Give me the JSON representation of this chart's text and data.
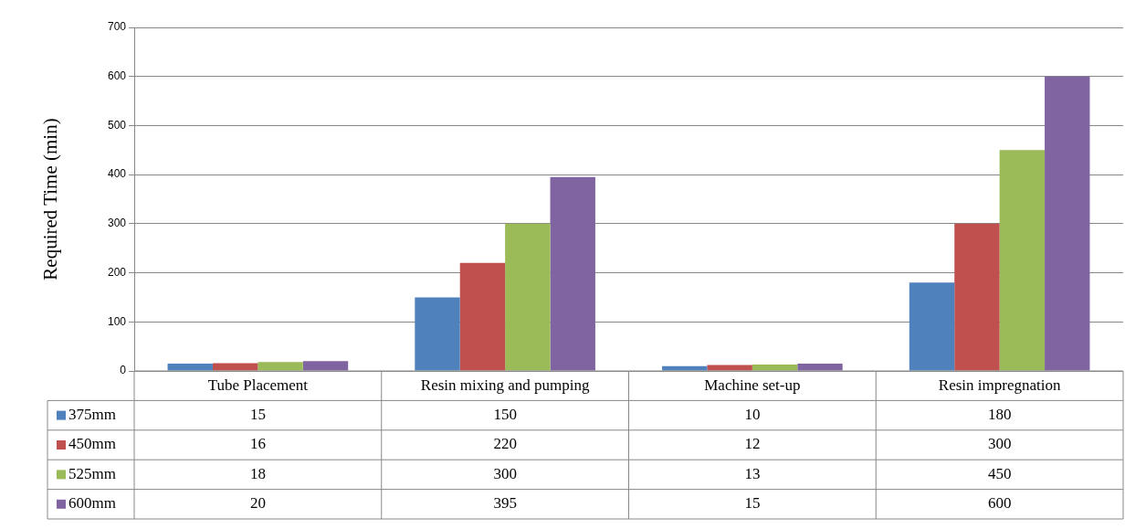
{
  "chart_data": {
    "type": "bar",
    "ylabel": "Required Time (min)",
    "categories": [
      "Tube Placement",
      "Resin mixing and pumping",
      "Machine set-up",
      "Resin impregnation"
    ],
    "series": [
      {
        "name": "375mm",
        "color": "#4f81bd",
        "values": [
          15,
          150,
          10,
          180
        ]
      },
      {
        "name": "450mm",
        "color": "#c0504d",
        "values": [
          16,
          220,
          12,
          300
        ]
      },
      {
        "name": "525mm",
        "color": "#9bbb59",
        "values": [
          18,
          300,
          13,
          450
        ]
      },
      {
        "name": "600mm",
        "color": "#8064a2",
        "values": [
          20,
          395,
          15,
          600
        ]
      }
    ],
    "ylim": [
      0,
      700
    ],
    "yticks": [
      0,
      100,
      200,
      300,
      400,
      500,
      600,
      700
    ],
    "grid": "y",
    "legend": "bottom",
    "data_labels": true
  }
}
